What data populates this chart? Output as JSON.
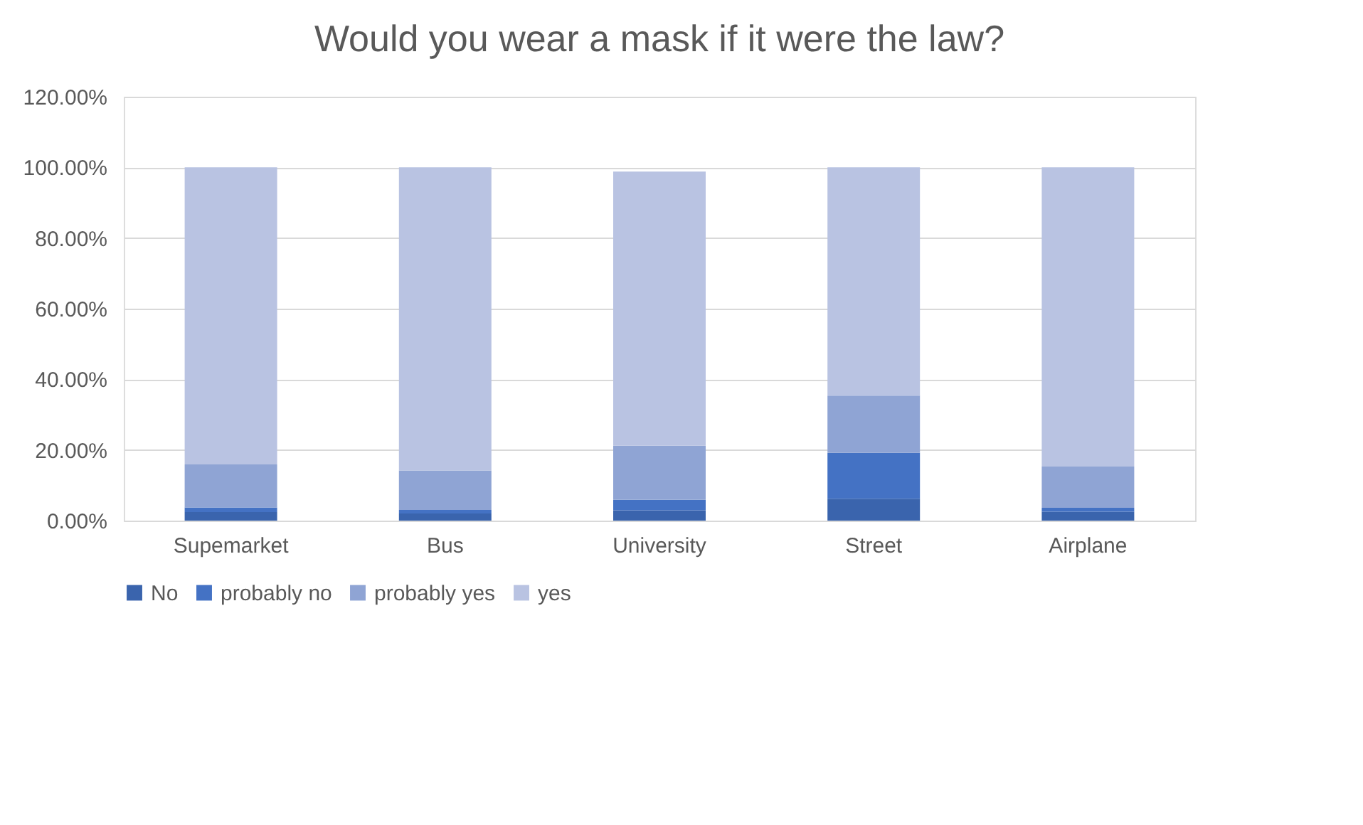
{
  "chart_data": {
    "type": "bar",
    "title": "Would you wear a mask if it were the law?",
    "categories": [
      "Supemarket",
      "Bus",
      "University",
      "Street",
      "Airplane"
    ],
    "stacked": true,
    "series": [
      {
        "name": "No",
        "color": "#3a64ad",
        "values": [
          2.4,
          2.0,
          2.9,
          6.2,
          2.5
        ]
      },
      {
        "name": "probably no",
        "color": "#4472c4",
        "values": [
          1.3,
          1.0,
          3.0,
          13.0,
          1.1
        ]
      },
      {
        "name": "probably yes",
        "color": "#8fa4d4",
        "values": [
          12.2,
          11.2,
          15.3,
          16.2,
          11.7
        ]
      },
      {
        "name": "yes",
        "color": "#b9c3e2",
        "values": [
          84.1,
          85.8,
          77.6,
          64.6,
          84.7
        ]
      }
    ],
    "ylim": [
      0,
      120
    ],
    "yticks": [
      {
        "value": 0,
        "label": "0.00%"
      },
      {
        "value": 20,
        "label": "20.00%"
      },
      {
        "value": 40,
        "label": "40.00%"
      },
      {
        "value": 60,
        "label": "60.00%"
      },
      {
        "value": 80,
        "label": "80.00%"
      },
      {
        "value": 100,
        "label": "100.00%"
      },
      {
        "value": 120,
        "label": "120.00%"
      }
    ],
    "grid": "y",
    "legend": "bottom"
  }
}
